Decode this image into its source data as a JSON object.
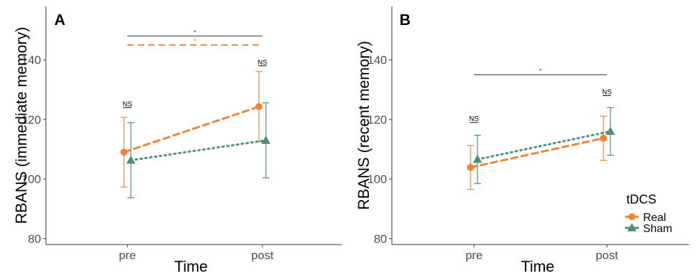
{
  "chart_data": [
    {
      "type": "line",
      "panel_label": "A",
      "xlabel": "Time",
      "ylabel": "RBANS (immediate memory)",
      "categories": [
        "pre",
        "post"
      ],
      "ylim": [
        78,
        158
      ],
      "yticks": [
        80,
        100,
        120,
        140
      ],
      "grid": false,
      "series": [
        {
          "name": "Real",
          "values": [
            109,
            124.3
          ],
          "lower": [
            97.3,
            112.5
          ],
          "upper": [
            120.7,
            136.1
          ],
          "color": "#f58231",
          "linestyle": "dashed",
          "marker": "circle"
        },
        {
          "name": "Sham",
          "values": [
            106.3,
            113
          ],
          "lower": [
            93.7,
            100.4
          ],
          "upper": [
            118.9,
            125.6
          ],
          "color": "#4e8f76",
          "linestyle": "dotted",
          "marker": "triangle"
        }
      ],
      "annotations": [
        {
          "type": "bracket",
          "category": "pre",
          "y": 124,
          "text": "NS"
        },
        {
          "type": "bracket",
          "category": "post",
          "y": 138,
          "text": "NS"
        },
        {
          "type": "span",
          "from": "pre",
          "to": "post",
          "y": 148,
          "text": "*",
          "color": "#555555",
          "linestyle": "solid"
        },
        {
          "type": "span",
          "from": "pre",
          "to": "post",
          "y": 145,
          "text": "*",
          "color": "#f58231",
          "linestyle": "dashed"
        }
      ]
    },
    {
      "type": "line",
      "panel_label": "B",
      "xlabel": "Time",
      "ylabel": "RBANS (recent memory)",
      "categories": [
        "pre",
        "post"
      ],
      "ylim": [
        78,
        158
      ],
      "yticks": [
        80,
        100,
        120,
        140
      ],
      "grid": false,
      "series": [
        {
          "name": "Real",
          "values": [
            103.9,
            113.7
          ],
          "lower": [
            96.5,
            106.3
          ],
          "upper": [
            111.3,
            121.1
          ],
          "color": "#f58231",
          "linestyle": "dashed",
          "marker": "circle"
        },
        {
          "name": "Sham",
          "values": [
            106.6,
            116
          ],
          "lower": [
            98.5,
            108
          ],
          "upper": [
            114.7,
            124
          ],
          "color": "#4e8f76",
          "linestyle": "dotted",
          "marker": "triangle"
        }
      ],
      "annotations": [
        {
          "type": "bracket",
          "category": "pre",
          "y": 119,
          "text": "NS"
        },
        {
          "type": "bracket",
          "category": "post",
          "y": 128,
          "text": "NS"
        },
        {
          "type": "span",
          "from": "pre",
          "to": "post",
          "y": 135,
          "text": "*",
          "color": "#555555",
          "linestyle": "solid"
        }
      ]
    }
  ],
  "legend": {
    "title": "tDCS",
    "placement": "bottom-right",
    "entries": [
      {
        "label": "Real",
        "color": "#f58231",
        "marker": "circle"
      },
      {
        "label": "Sham",
        "color": "#4e8f76",
        "marker": "triangle"
      }
    ]
  }
}
